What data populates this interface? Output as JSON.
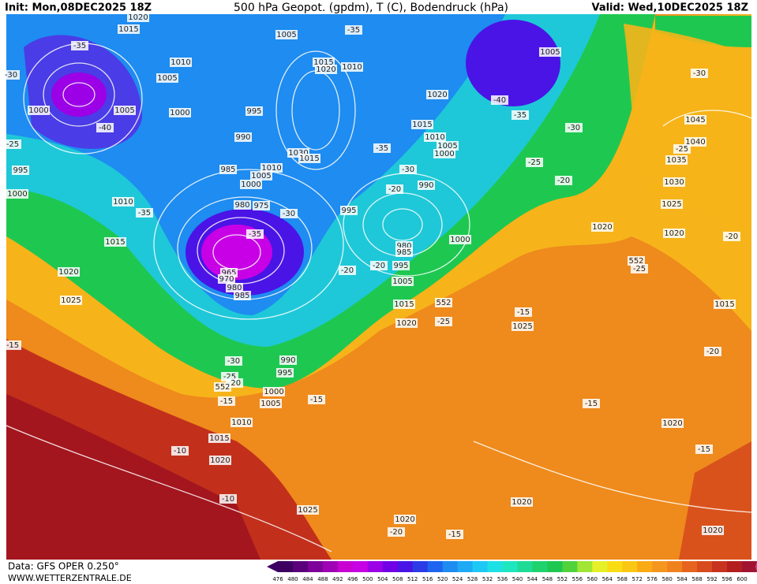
{
  "header": {
    "init": "Init: Mon,08DEC2025 18Z",
    "title": "500 hPa Geopot. (gpdm), T (C), Bodendruck (hPa)",
    "valid": "Valid: Wed,10DEC2025 18Z"
  },
  "footer": {
    "data": "Data: GFS OPER 0.250°",
    "site": "WWW.WETTERZENTRALE.DE"
  },
  "colorbar": {
    "labels": [
      "476",
      "480",
      "484",
      "488",
      "492",
      "496",
      "500",
      "504",
      "508",
      "512",
      "516",
      "520",
      "524",
      "528",
      "532",
      "536",
      "540",
      "544",
      "548",
      "552",
      "556",
      "560",
      "564",
      "568",
      "572",
      "576",
      "580",
      "584",
      "588",
      "592",
      "596",
      "600"
    ],
    "colors": [
      "#3d0060",
      "#5a007a",
      "#7d0099",
      "#a000b5",
      "#c800d2",
      "#c800e6",
      "#9b00e6",
      "#7200e6",
      "#4a14e6",
      "#2b3ce6",
      "#1e64f0",
      "#1e8cf0",
      "#1eaaf5",
      "#1ec8f5",
      "#1ee1e6",
      "#1ee6be",
      "#1edc96",
      "#1ed26e",
      "#1ec850",
      "#50d23c",
      "#a0e632",
      "#e6f028",
      "#fadc14",
      "#fac814",
      "#faaa14",
      "#f5961e",
      "#f0821e",
      "#e6641e",
      "#d74b1e",
      "#c8321e",
      "#b41e1e",
      "#a01432"
    ]
  },
  "map_labels": [
    "1020",
    "1015",
    "1005",
    "-35",
    "1010",
    "1005",
    "1015",
    "1020",
    "1010",
    "-35",
    "-30",
    "1000",
    "1005",
    "1000",
    "995",
    "-40",
    "1005",
    "-30",
    "1020",
    "-40",
    "-35",
    "1015",
    "-30",
    "1010",
    "1005",
    "1000",
    "990",
    "-25",
    "1030",
    "1015",
    "-35",
    "1045",
    "1040",
    "-25",
    "1035",
    "995",
    "985",
    "1010",
    "1005",
    "-30",
    "-25",
    "1000",
    "-20",
    "990",
    "-20",
    "1030",
    "1000",
    "1010",
    "980",
    "975",
    "-30",
    "995",
    "1025",
    "-35",
    "1020",
    "1020",
    "-35",
    "1015",
    "980",
    "1000",
    "-20",
    "985",
    "995",
    "-20",
    "-20",
    "965",
    "970",
    "1020",
    "-25",
    "980",
    "985",
    "1005",
    "1025",
    "1015",
    "552",
    "1015",
    "1020",
    "-25",
    "-15",
    "1025",
    "-15",
    "-20",
    "-30",
    "990",
    "995",
    "-25",
    "-20",
    "552",
    "1000",
    "-15",
    "1005",
    "-15",
    "-15",
    "1010",
    "1020",
    "1015",
    "-10",
    "-15",
    "1020",
    "-10",
    "1020",
    "1025",
    "1020",
    "-20",
    "-15",
    "1020",
    "552"
  ]
}
